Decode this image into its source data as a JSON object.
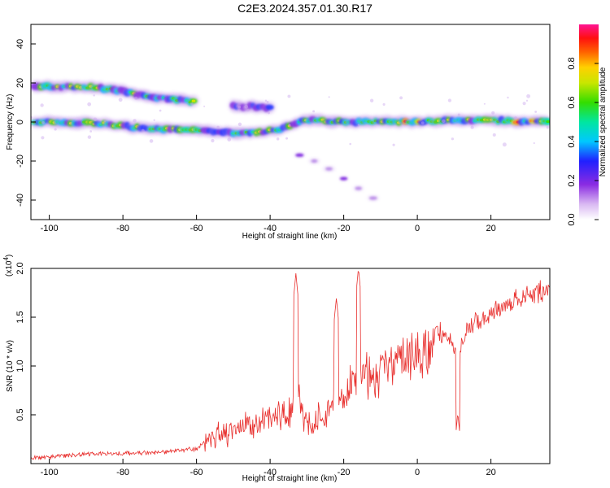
{
  "title": "C2E3.2024.357.01.30.R17",
  "chart_data": [
    {
      "type": "heatmap",
      "xlabel": "Height of straight line (km)",
      "ylabel": "Frequency (Hz)",
      "xlim": [
        -105,
        36
      ],
      "ylim": [
        -50,
        50
      ],
      "xticks": [
        -100,
        -80,
        -60,
        -40,
        -20,
        0,
        20
      ],
      "yticks": [
        -40,
        -20,
        0,
        20,
        40
      ],
      "colorbar": {
        "label": "Normalized spectral amplitude",
        "range": [
          0.0,
          1.0
        ],
        "ticks": [
          0.0,
          0.2,
          0.4,
          0.6,
          0.8
        ],
        "tick_labels": [
          "0.0",
          "0.2",
          "0.4",
          "0.6",
          "0.8"
        ]
      },
      "ridges": [
        {
          "x": [
            -104,
            -100,
            -95,
            -90,
            -85,
            -80,
            -76,
            -72,
            -68,
            -64,
            -60
          ],
          "y": [
            18,
            18,
            18,
            18,
            17,
            16,
            14,
            13,
            12,
            11,
            10
          ]
        },
        {
          "x": [
            -104,
            -95,
            -85,
            -75,
            -65,
            -55,
            -48,
            -42,
            -38,
            -30,
            -20,
            -10,
            0,
            10,
            20,
            30,
            36
          ],
          "y": [
            0,
            0,
            -1,
            -3,
            -4,
            -5,
            -6,
            -5,
            -4,
            1,
            0,
            0,
            0,
            1,
            1,
            0,
            0
          ]
        },
        {
          "x": [
            -50,
            -45,
            -40
          ],
          "y": [
            8,
            8,
            7
          ]
        },
        {
          "x": [
            -32,
            -28,
            -24,
            -20,
            -16,
            -12
          ],
          "y": [
            -17,
            -20,
            -24,
            -29,
            -34,
            -39
          ]
        }
      ]
    },
    {
      "type": "line",
      "xlabel": "Height of straight line (km)",
      "ylabel": "SNR (10 * v/v)",
      "multiplier": "(x10",
      "multiplier_exp": "4",
      "xlim": [
        -105,
        36
      ],
      "ylim": [
        0,
        2.0
      ],
      "xticks": [
        -100,
        -80,
        -60,
        -40,
        -20,
        0,
        20
      ],
      "yticks": [
        0.5,
        1.0,
        1.5,
        2.0
      ],
      "ytick_labels": [
        "0.5",
        "1.0",
        "1.5",
        "2.0"
      ],
      "color": "#e8302e",
      "envelope": {
        "x": [
          -105,
          -90,
          -70,
          -60,
          -55,
          -50,
          -45,
          -40,
          -35,
          -33,
          -30,
          -25,
          -22,
          -20,
          -17,
          -15,
          -12,
          -10,
          -5,
          0,
          5,
          8,
          11,
          14,
          18,
          25,
          30,
          36
        ],
        "y": [
          0.08,
          0.12,
          0.14,
          0.18,
          0.35,
          0.4,
          0.5,
          0.55,
          0.6,
          0.9,
          0.5,
          0.6,
          0.9,
          0.8,
          1.0,
          1.1,
          1.05,
          1.15,
          1.3,
          1.35,
          1.45,
          1.4,
          1.2,
          1.5,
          1.6,
          1.75,
          1.82,
          1.88
        ]
      },
      "spikes": [
        {
          "x": -33,
          "y": 1.95
        },
        {
          "x": -22,
          "y": 1.7
        },
        {
          "x": -16,
          "y": 2.0
        },
        {
          "x": 11,
          "y": 0.52
        }
      ]
    }
  ]
}
